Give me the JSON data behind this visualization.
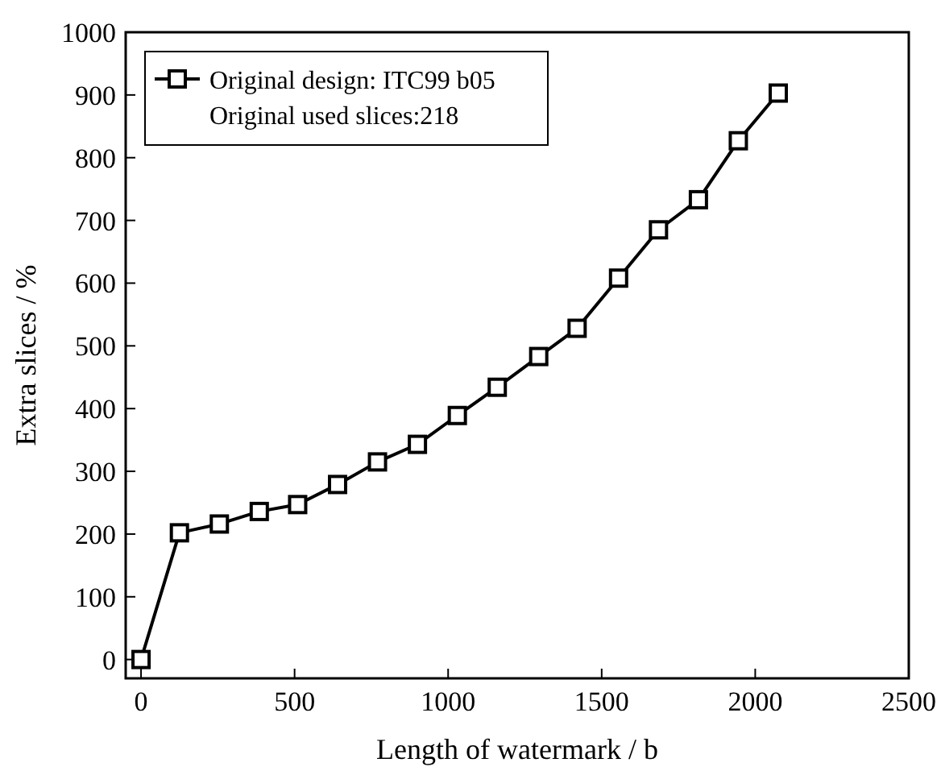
{
  "chart_data": {
    "type": "line",
    "xlabel": "Length of watermark / b",
    "ylabel": "Extra slices  / %",
    "x": [
      0,
      125,
      255,
      385,
      510,
      640,
      770,
      900,
      1030,
      1160,
      1295,
      1420,
      1555,
      1685,
      1815,
      1945,
      2075
    ],
    "series": [
      {
        "name": "Original design: ITC99 b05",
        "color": "#000000",
        "values": [
          0,
          202,
          216,
          236,
          247,
          279,
          315,
          343,
          389,
          434,
          483,
          528,
          608,
          685,
          733,
          827,
          903
        ]
      }
    ],
    "annotations": [
      "Original used slices:218"
    ],
    "xlim": [
      -50,
      2500
    ],
    "xticks": [
      0,
      500,
      1000,
      1500,
      2000,
      2500
    ],
    "ylim": [
      -30,
      1000
    ],
    "yticks": [
      0,
      100,
      200,
      300,
      400,
      500,
      600,
      700,
      800,
      900,
      1000
    ],
    "marker": "square",
    "line_style": "solid",
    "legend": "top left",
    "grid": false
  }
}
